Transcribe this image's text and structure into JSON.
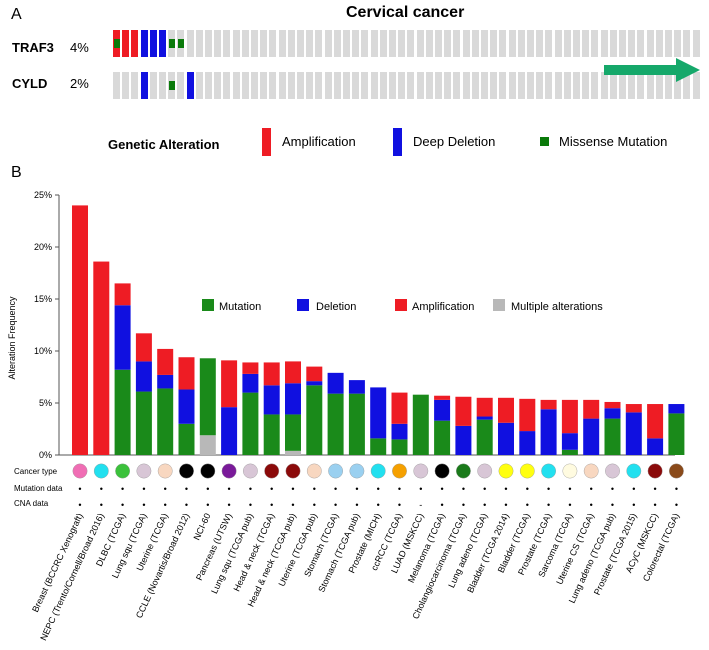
{
  "panelA": {
    "label": "A",
    "title": "Cervical cancer",
    "genes": [
      {
        "name": "TRAF3",
        "pct": "4%",
        "alterations": [
          {
            "col": 0,
            "type": "amp"
          },
          {
            "col": 0,
            "type": "missense"
          },
          {
            "col": 1,
            "type": "amp"
          },
          {
            "col": 2,
            "type": "amp"
          },
          {
            "col": 3,
            "type": "del"
          },
          {
            "col": 4,
            "type": "del"
          },
          {
            "col": 5,
            "type": "del"
          },
          {
            "col": 6,
            "type": "missense"
          },
          {
            "col": 7,
            "type": "missense"
          }
        ]
      },
      {
        "name": "CYLD",
        "pct": "2%",
        "alterations": [
          {
            "col": 3,
            "type": "del"
          },
          {
            "col": 6,
            "type": "missense"
          },
          {
            "col": 8,
            "type": "del"
          }
        ]
      }
    ],
    "legend": {
      "title": "Genetic Alteration",
      "items": [
        {
          "label": "Amplification",
          "color": "#ee1c24",
          "shape": "tall"
        },
        {
          "label": "Deep Deletion",
          "color": "#1010e0",
          "shape": "tall"
        },
        {
          "label": "Missense Mutation",
          "color": "#0a7a0a",
          "shape": "small"
        }
      ]
    }
  },
  "panelB": {
    "label": "B",
    "legend": [
      {
        "label": "Mutation",
        "color": "#1a8a1a"
      },
      {
        "label": "Deletion",
        "color": "#1010e0"
      },
      {
        "label": "Amplification",
        "color": "#ee1c24"
      },
      {
        "label": "Multiple alterations",
        "color": "#b8b8b8"
      }
    ],
    "row_labels": [
      "Cancer type",
      "Mutation data",
      "CNA data"
    ],
    "chart_data": {
      "type": "bar",
      "stacked": true,
      "ylabel": "Alteration Frequency",
      "ylim": [
        0,
        25
      ],
      "yticks": [
        "0%",
        "5%",
        "10%",
        "15%",
        "20%",
        "25%"
      ],
      "series_order": [
        "multiple",
        "mutation",
        "deletion",
        "amplification"
      ],
      "colors": {
        "mutation": "#1a8a1a",
        "deletion": "#1010e0",
        "amplification": "#ee1c24",
        "multiple": "#b8b8b8"
      },
      "categories": [
        {
          "label": "Breast (BCCRC Xenograft)",
          "mutation": 0,
          "deletion": 0,
          "amplification": 24.0,
          "multiple": 0,
          "type_color": "#f06db4",
          "mut_mark": "•",
          "cna_mark": "•"
        },
        {
          "label": "NEPC (Trento/Cornell/Broad 2016)",
          "mutation": 0,
          "deletion": 0,
          "amplification": 18.6,
          "multiple": 0,
          "type_color": "#22e0ef",
          "mut_mark": "•",
          "cna_mark": "•"
        },
        {
          "label": "DLBC (TCGA)",
          "mutation": 8.2,
          "deletion": 6.2,
          "amplification": 2.1,
          "multiple": 0,
          "type_color": "#3bc13b",
          "mut_mark": "•",
          "cna_mark": "•"
        },
        {
          "label": "Lung squ (TCGA)",
          "mutation": 6.1,
          "deletion": 2.9,
          "amplification": 2.7,
          "multiple": 0,
          "type_color": "#d8c6d6",
          "mut_mark": "•",
          "cna_mark": "•"
        },
        {
          "label": "Uterine (TCGA)",
          "mutation": 6.4,
          "deletion": 1.3,
          "amplification": 2.5,
          "multiple": 0,
          "type_color": "#f8d7c0",
          "mut_mark": "•",
          "cna_mark": "•"
        },
        {
          "label": "CCLE (Novartis/Broad 2012)",
          "mutation": 3.0,
          "deletion": 3.3,
          "amplification": 3.1,
          "multiple": 0,
          "type_color": "#000000",
          "mut_mark": "•",
          "cna_mark": "•"
        },
        {
          "label": "NCI-60",
          "mutation": 7.4,
          "deletion": 0,
          "amplification": 0,
          "multiple": 1.9,
          "type_color": "#000000",
          "mut_mark": "•",
          "cna_mark": "•"
        },
        {
          "label": "Pancreas (UTSW)",
          "mutation": 0,
          "deletion": 4.6,
          "amplification": 4.5,
          "multiple": 0,
          "type_color": "#7a1a9a",
          "mut_mark": "•",
          "cna_mark": "•"
        },
        {
          "label": "Lung squ (TCGA pub)",
          "mutation": 6.0,
          "deletion": 1.8,
          "amplification": 1.1,
          "multiple": 0,
          "type_color": "#d8c6d6",
          "mut_mark": "•",
          "cna_mark": "•"
        },
        {
          "label": "Head & neck (TCGA)",
          "mutation": 3.9,
          "deletion": 2.8,
          "amplification": 2.2,
          "multiple": 0,
          "type_color": "#8b0a0a",
          "mut_mark": "•",
          "cna_mark": "•"
        },
        {
          "label": "Head & neck (TCGA pub)",
          "mutation": 3.5,
          "deletion": 3.0,
          "amplification": 2.1,
          "multiple": 0.4,
          "type_color": "#8b0a0a",
          "mut_mark": "•",
          "cna_mark": "•"
        },
        {
          "label": "Uterine (TCGA pub)",
          "mutation": 6.7,
          "deletion": 0.4,
          "amplification": 1.4,
          "multiple": 0,
          "type_color": "#f8d7c0",
          "mut_mark": "•",
          "cna_mark": "•"
        },
        {
          "label": "Stomach (TCGA)",
          "mutation": 5.9,
          "deletion": 2.0,
          "amplification": 0,
          "multiple": 0,
          "type_color": "#9ad0f0",
          "mut_mark": "•",
          "cna_mark": "•"
        },
        {
          "label": "Stomach (TCGA pub)",
          "mutation": 5.9,
          "deletion": 1.3,
          "amplification": 0,
          "multiple": 0,
          "type_color": "#9ad0f0",
          "mut_mark": "•",
          "cna_mark": "•"
        },
        {
          "label": "Prostate (MICH)",
          "mutation": 1.6,
          "deletion": 4.9,
          "amplification": 0,
          "multiple": 0,
          "type_color": "#22e0ef",
          "mut_mark": "•",
          "cna_mark": "•"
        },
        {
          "label": "ccRCC (TCGA)",
          "mutation": 1.5,
          "deletion": 1.5,
          "amplification": 3.0,
          "multiple": 0,
          "type_color": "#f5a000",
          "mut_mark": "•",
          "cna_mark": "•"
        },
        {
          "label": "LUAD (MSKCC)",
          "mutation": 5.8,
          "deletion": 0,
          "amplification": 0,
          "multiple": 0,
          "type_color": "#d8c6d6",
          "mut_mark": "•",
          "cna_mark": "-"
        },
        {
          "label": "Melanoma (TCGA)",
          "mutation": 3.3,
          "deletion": 2.0,
          "amplification": 0.4,
          "multiple": 0,
          "type_color": "#000000",
          "mut_mark": "•",
          "cna_mark": "•"
        },
        {
          "label": "Cholangiocarcinoma (TCGA)",
          "mutation": 0,
          "deletion": 2.8,
          "amplification": 2.8,
          "multiple": 0,
          "type_color": "#1a7a1a",
          "mut_mark": "•",
          "cna_mark": "•"
        },
        {
          "label": "Lung adeno (TCGA)",
          "mutation": 3.4,
          "deletion": 0.3,
          "amplification": 1.8,
          "multiple": 0,
          "type_color": "#d8c6d6",
          "mut_mark": "•",
          "cna_mark": "•"
        },
        {
          "label": "Bladder (TCGA 2014)",
          "mutation": 0,
          "deletion": 3.1,
          "amplification": 2.4,
          "multiple": 0,
          "type_color": "#ffff10",
          "mut_mark": "•",
          "cna_mark": "•"
        },
        {
          "label": "Bladder (TCGA)",
          "mutation": 0,
          "deletion": 2.3,
          "amplification": 3.1,
          "multiple": 0,
          "type_color": "#ffff10",
          "mut_mark": "•",
          "cna_mark": "•"
        },
        {
          "label": "Prostate (TCGA)",
          "mutation": 0,
          "deletion": 4.4,
          "amplification": 0.9,
          "multiple": 0,
          "type_color": "#22e0ef",
          "mut_mark": "•",
          "cna_mark": "•"
        },
        {
          "label": "Sarcoma (TCGA)",
          "mutation": 0.5,
          "deletion": 1.6,
          "amplification": 3.2,
          "multiple": 0,
          "type_color": "#fffbe0",
          "mut_mark": "•",
          "cna_mark": "•"
        },
        {
          "label": "Uterine CS (TCGA)",
          "mutation": 0,
          "deletion": 3.5,
          "amplification": 1.8,
          "multiple": 0,
          "type_color": "#f8d7c0",
          "mut_mark": "•",
          "cna_mark": "•"
        },
        {
          "label": "Lung adeno (TCGA pub)",
          "mutation": 3.5,
          "deletion": 1.0,
          "amplification": 0.6,
          "multiple": 0,
          "type_color": "#d8c6d6",
          "mut_mark": "•",
          "cna_mark": "•"
        },
        {
          "label": "Prostate (TCGA 2015)",
          "mutation": 0,
          "deletion": 4.1,
          "amplification": 0.8,
          "multiple": 0,
          "type_color": "#22e0ef",
          "mut_mark": "•",
          "cna_mark": "•"
        },
        {
          "label": "ACyC (MSKCC)",
          "mutation": 0,
          "deletion": 1.6,
          "amplification": 3.3,
          "multiple": 0,
          "type_color": "#8b0a0a",
          "mut_mark": "•",
          "cna_mark": "•"
        },
        {
          "label": "Colorectal (TCGA)",
          "mutation": 4.0,
          "deletion": 0.9,
          "amplification": 0,
          "multiple": 0,
          "type_color": "#8a4a1a",
          "mut_mark": "•",
          "cna_mark": "•"
        }
      ]
    }
  }
}
